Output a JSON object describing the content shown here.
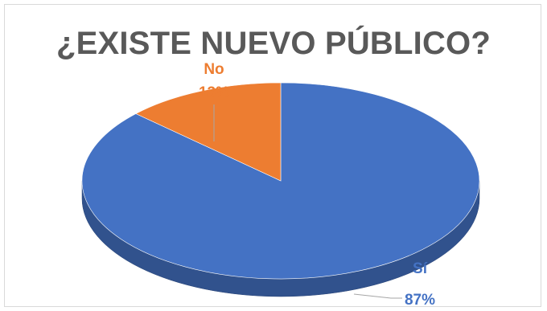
{
  "chart_data": {
    "type": "pie",
    "title": "¿EXISTE NUEVO PÚBLICO?",
    "categories": [
      "Sí",
      "No"
    ],
    "values": [
      87,
      13
    ],
    "value_labels": [
      "87%",
      "13%"
    ],
    "colors": [
      "#4472C4",
      "#ED7D31"
    ],
    "legend": "none"
  }
}
